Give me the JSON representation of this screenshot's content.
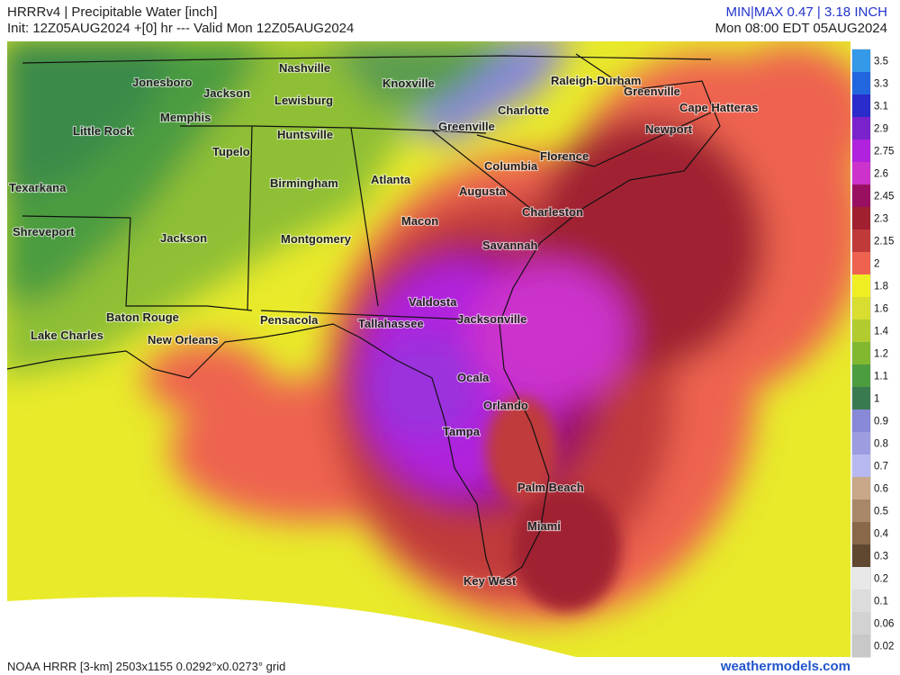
{
  "header": {
    "title": "HRRRv4 | Precipitable Water [inch]",
    "init": "Init: 12Z05AUG2024 +[0] hr --- Valid Mon 12Z05AUG2024",
    "minmax": "MIN|MAX 0.47 | 3.18 INCH",
    "valid": "Mon 08:00 EDT 05AUG2024"
  },
  "cities": [
    "Nashville",
    "Knoxville",
    "Jonesboro",
    "Jackson",
    "Lewisburg",
    "Raleigh-Durham",
    "Greenville",
    "Charlotte",
    "Cape Hatteras",
    "Memphis",
    "Little Rock",
    "Huntsville",
    "Greenville",
    "Newport",
    "Tupelo",
    "Columbia",
    "Florence",
    "Texarkana",
    "Birmingham",
    "Atlanta",
    "Augusta",
    "Charleston",
    "Shreveport",
    "Jackson",
    "Montgomery",
    "Macon",
    "Savannah",
    "Valdosta",
    "Baton Rouge",
    "Pensacola",
    "Tallahassee",
    "Jacksonville",
    "Lake Charles",
    "New Orleans",
    "Ocala",
    "Orlando",
    "Tampa",
    "Palm Beach",
    "Miami",
    "Key West"
  ],
  "colorbar": [
    {
      "label": "3.5",
      "color": "#3399e8"
    },
    {
      "label": "3.3",
      "color": "#2266dd"
    },
    {
      "label": "3.1",
      "color": "#2a2ccc"
    },
    {
      "label": "2.9",
      "color": "#7a22cc"
    },
    {
      "label": "2.75",
      "color": "#b022dd"
    },
    {
      "label": "2.6",
      "color": "#cc33cc"
    },
    {
      "label": "2.45",
      "color": "#9a1060"
    },
    {
      "label": "2.3",
      "color": "#a02030"
    },
    {
      "label": "2.15",
      "color": "#c03a3a"
    },
    {
      "label": "2",
      "color": "#ee6350"
    },
    {
      "label": "1.8",
      "color": "#eeee22"
    },
    {
      "label": "1.6",
      "color": "#d8dd30"
    },
    {
      "label": "1.4",
      "color": "#b2cc30"
    },
    {
      "label": "1.2",
      "color": "#82b830"
    },
    {
      "label": "1.1",
      "color": "#4c9c40"
    },
    {
      "label": "1",
      "color": "#3a7a50"
    },
    {
      "label": "0.9",
      "color": "#8888d8"
    },
    {
      "label": "0.8",
      "color": "#9c9ce0"
    },
    {
      "label": "0.7",
      "color": "#b8b8f0"
    },
    {
      "label": "0.6",
      "color": "#c8a888"
    },
    {
      "label": "0.5",
      "color": "#a88868"
    },
    {
      "label": "0.4",
      "color": "#886848"
    },
    {
      "label": "0.3",
      "color": "#604830"
    },
    {
      "label": "0.2",
      "color": "#e8e8e8"
    },
    {
      "label": "0.1",
      "color": "#dcdcdc"
    },
    {
      "label": "0.06",
      "color": "#d2d2d2"
    },
    {
      "label": "0.02",
      "color": "#c8c8c8"
    }
  ],
  "footer": {
    "source": "NOAA HRRR [3-km] 2503x1155 0.0292°x0.0273° grid",
    "site": "weathermodels.com"
  }
}
